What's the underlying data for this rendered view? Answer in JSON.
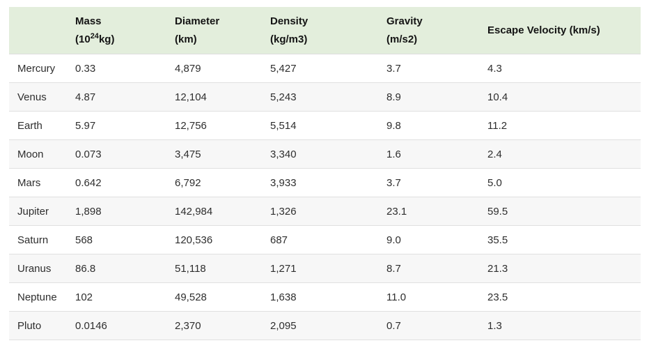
{
  "colors": {
    "header_bg": "#e3eedc",
    "header_text": "#141414",
    "body_text": "#2e2e2e",
    "row_alt_bg": "#f7f7f7",
    "row_border": "#e0e0e0",
    "page_bg": "#ffffff"
  },
  "header": {
    "name_label": "",
    "mass_line1": "Mass",
    "mass_line2_pre": "(10",
    "mass_sup": "24",
    "mass_line2_post": "kg)",
    "diameter_line1": "Diameter",
    "diameter_line2": "(km)",
    "density_line1": "Density",
    "density_line2": "(kg/m3)",
    "gravity_line1": "Gravity",
    "gravity_line2": "(m/s2)",
    "escape_line1": "Escape Velocity (km/s)"
  },
  "chart_data": {
    "type": "table",
    "title": "Planetary fact table",
    "columns": [
      "",
      "Mass (10^24 kg)",
      "Diameter (km)",
      "Density (kg/m3)",
      "Gravity (m/s2)",
      "Escape Velocity (km/s)"
    ],
    "rows": [
      [
        "Mercury",
        "0.33",
        "4,879",
        "5,427",
        "3.7",
        "4.3"
      ],
      [
        "Venus",
        "4.87",
        "12,104",
        "5,243",
        "8.9",
        "10.4"
      ],
      [
        "Earth",
        "5.97",
        "12,756",
        "5,514",
        "9.8",
        "11.2"
      ],
      [
        "Moon",
        "0.073",
        "3,475",
        "3,340",
        "1.6",
        "2.4"
      ],
      [
        "Mars",
        "0.642",
        "6,792",
        "3,933",
        "3.7",
        "5.0"
      ],
      [
        "Jupiter",
        "1,898",
        "142,984",
        "1,326",
        "23.1",
        "59.5"
      ],
      [
        "Saturn",
        "568",
        "120,536",
        "687",
        "9.0",
        "35.5"
      ],
      [
        "Uranus",
        "86.8",
        "51,118",
        "1,271",
        "8.7",
        "21.3"
      ],
      [
        "Neptune",
        "102",
        "49,528",
        "1,638",
        "11.0",
        "23.5"
      ],
      [
        "Pluto",
        "0.0146",
        "2,370",
        "2,095",
        "0.7",
        "1.3"
      ]
    ]
  }
}
